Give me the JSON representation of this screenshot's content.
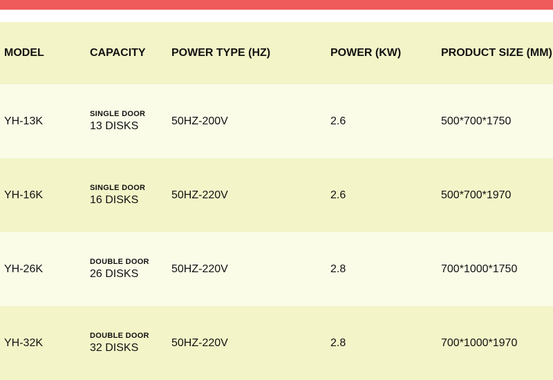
{
  "colors": {
    "top_bar": "#ef5a5a",
    "band_a": "#f3f4c8",
    "band_b": "#fafce8",
    "text": "#111111"
  },
  "columns": {
    "model": "MODEL",
    "capacity": "CAPACITY",
    "powertype": "POWER TYPE (HZ)",
    "power": "POWER (KW)",
    "size": "PRODUCT SIZE (MM)"
  },
  "rows": [
    {
      "model": "YH-13K",
      "capacity_sub": "SINGLE DOOR",
      "capacity_main": "13 DISKS",
      "powertype": "50HZ-200V",
      "power": "2.6",
      "size": "500*700*1750"
    },
    {
      "model": "YH-16K",
      "capacity_sub": "SINGLE DOOR",
      "capacity_main": "16 DISKS",
      "powertype": "50HZ-220V",
      "power": "2.6",
      "size": "500*700*1970"
    },
    {
      "model": "YH-26K",
      "capacity_sub": "DOUBLE DOOR",
      "capacity_main": "26 DISKS",
      "powertype": "50HZ-220V",
      "power": "2.8",
      "size": "700*1000*1750"
    },
    {
      "model": "YH-32K",
      "capacity_sub": "DOUBLE DOOR",
      "capacity_main": "32 DISKS",
      "powertype": "50HZ-220V",
      "power": "2.8",
      "size": "700*1000*1970"
    }
  ]
}
